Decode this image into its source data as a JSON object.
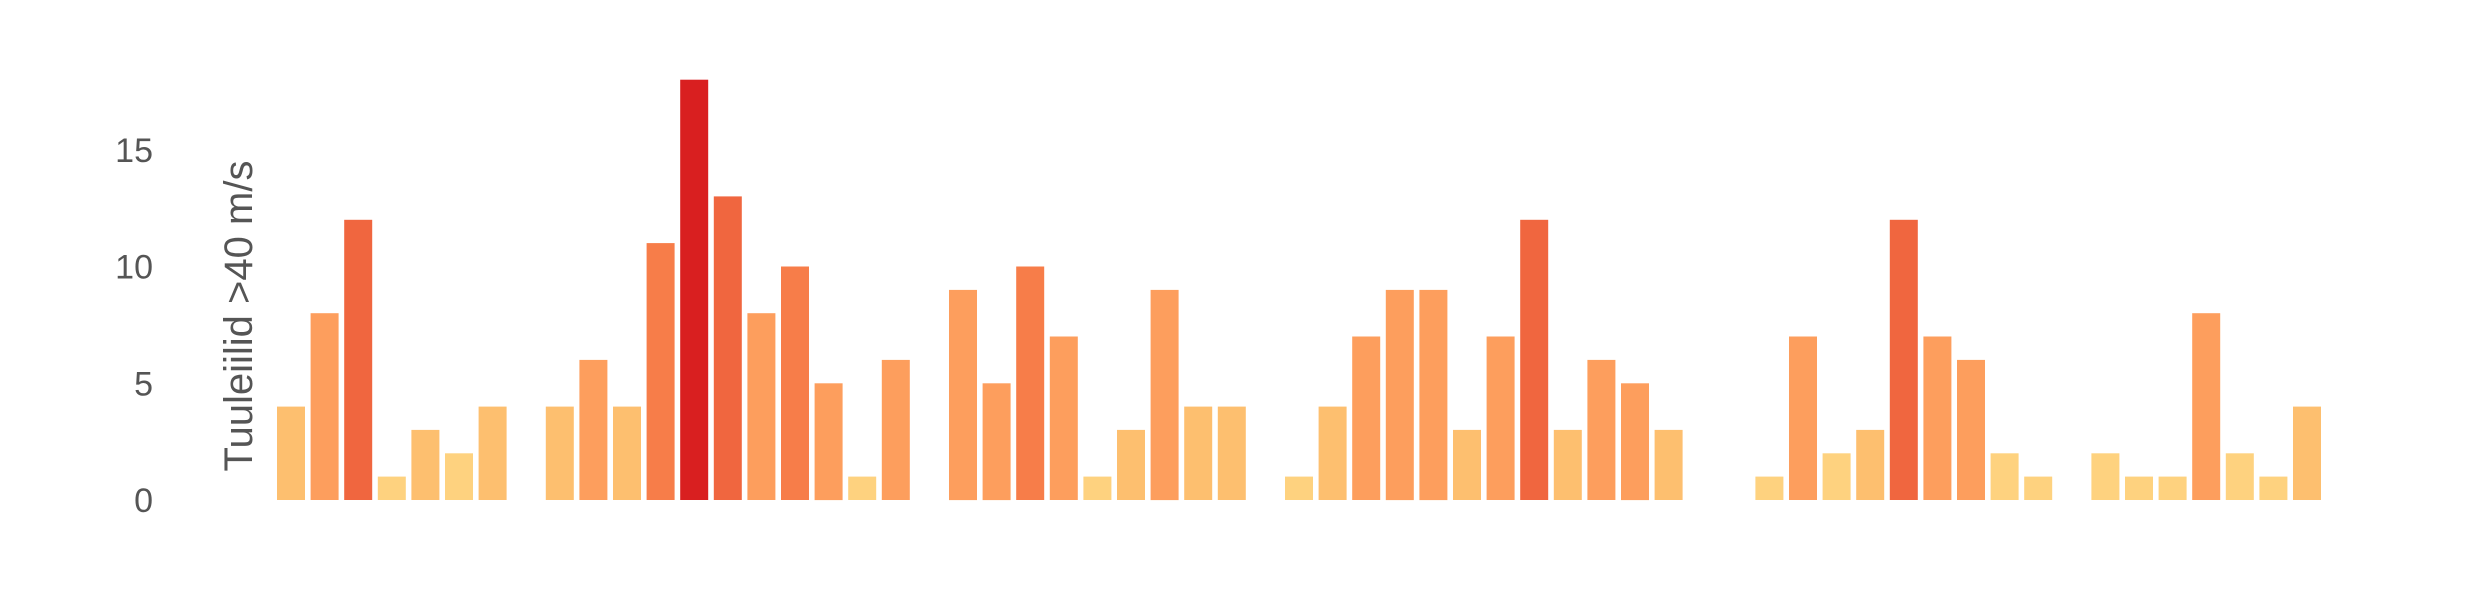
{
  "chart_data": {
    "type": "bar",
    "title": "",
    "xlabel": "",
    "ylabel": "Tuuleiilid >40 m/s",
    "ylim": [
      0,
      18
    ],
    "yticks": [
      0,
      5,
      10,
      15
    ],
    "grid": false,
    "legend": "none",
    "values": [
      4,
      8,
      12,
      1,
      3,
      2,
      4,
      null,
      4,
      6,
      4,
      11,
      18,
      13,
      8,
      10,
      5,
      1,
      6,
      null,
      9,
      5,
      10,
      7,
      1,
      3,
      9,
      4,
      4,
      null,
      1,
      4,
      7,
      9,
      9,
      3,
      7,
      12,
      3,
      6,
      5,
      3,
      null,
      null,
      1,
      7,
      2,
      3,
      12,
      7,
      6,
      2,
      1,
      null,
      2,
      1,
      1,
      8,
      2,
      1,
      4
    ],
    "color_scale": [
      "#fed27f",
      "#fdbf6f",
      "#fd9e5d",
      "#f77d49",
      "#f0663f",
      "#d91f20"
    ]
  }
}
